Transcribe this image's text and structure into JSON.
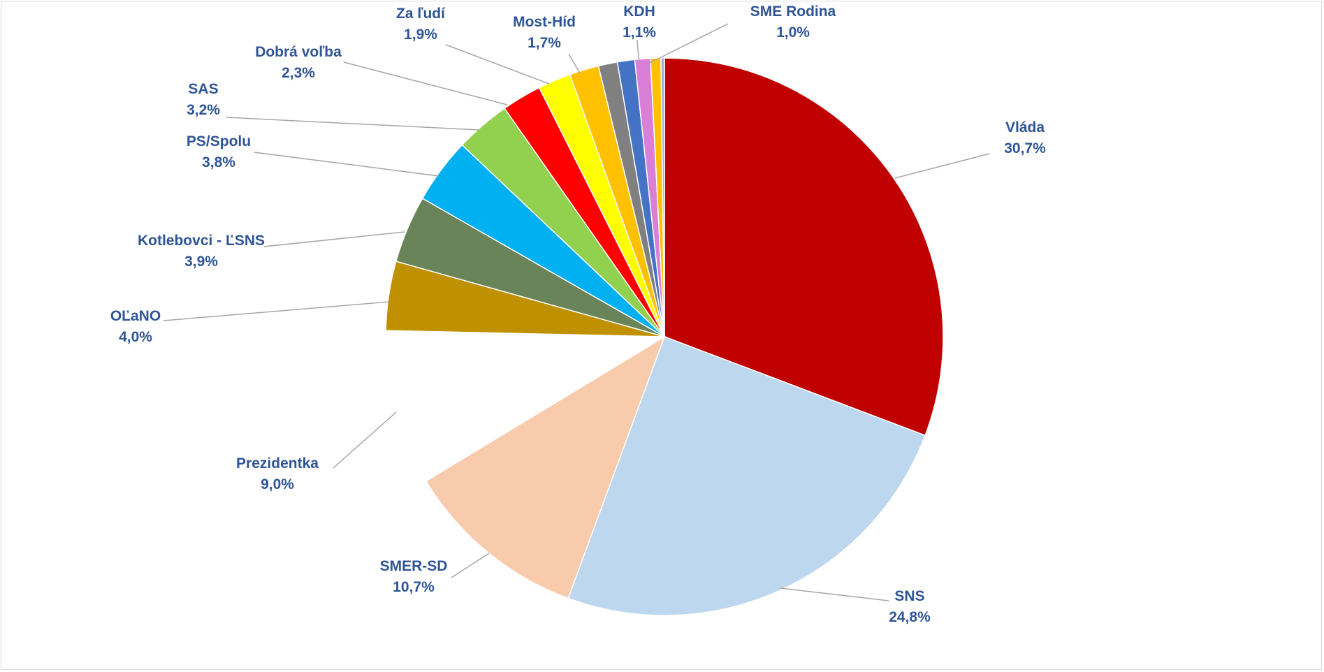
{
  "chart_data": {
    "type": "pie",
    "title": "",
    "slices": [
      {
        "label": "Vláda",
        "value": 30.7,
        "display": "30,7%",
        "color": "#c00000"
      },
      {
        "label": "SNS",
        "value": 24.8,
        "display": "24,8%",
        "color": "#bdd7ee"
      },
      {
        "label": "SMER-SD",
        "value": 10.7,
        "display": "10,7%",
        "color": "#f8cbad"
      },
      {
        "label": "Prezidentka",
        "value": 9.0,
        "display": "9,0%",
        "color": "#ffffff"
      },
      {
        "label": "OĽaNO",
        "value": 4.0,
        "display": "4,0%",
        "color": "#bf9000"
      },
      {
        "label": "Kotlebovci - ĽSNS",
        "value": 3.9,
        "display": "3,9%",
        "color": "#6a8459"
      },
      {
        "label": "PS/Spolu",
        "value": 3.8,
        "display": "3,8%",
        "color": "#00b0f0"
      },
      {
        "label": "SAS",
        "value": 3.2,
        "display": "3,2%",
        "color": "#92d050"
      },
      {
        "label": "Dobrá voľba",
        "value": 2.3,
        "display": "2,3%",
        "color": "#ff0000"
      },
      {
        "label": "Za ľudí",
        "value": 1.9,
        "display": "1,9%",
        "color": "#ffff00"
      },
      {
        "label": "Most-Híd",
        "value": 1.7,
        "display": "1,7%",
        "color": "#ffc000"
      },
      {
        "label": "KDH",
        "value": 1.1,
        "display": "1,1%",
        "color": "#808080"
      },
      {
        "label": "SME Rodina",
        "value": 1.0,
        "display": "1,0%",
        "color": "#4472c4"
      },
      {
        "label": "",
        "value": 0.9,
        "display": "",
        "color": "#da7fd8"
      },
      {
        "label": "",
        "value": 0.6,
        "display": "",
        "color": "#ffc000"
      },
      {
        "label": "",
        "value": 0.2,
        "display": "",
        "color": "#a9a9d6"
      }
    ],
    "label_color": "#2f5597",
    "legend": "none"
  }
}
